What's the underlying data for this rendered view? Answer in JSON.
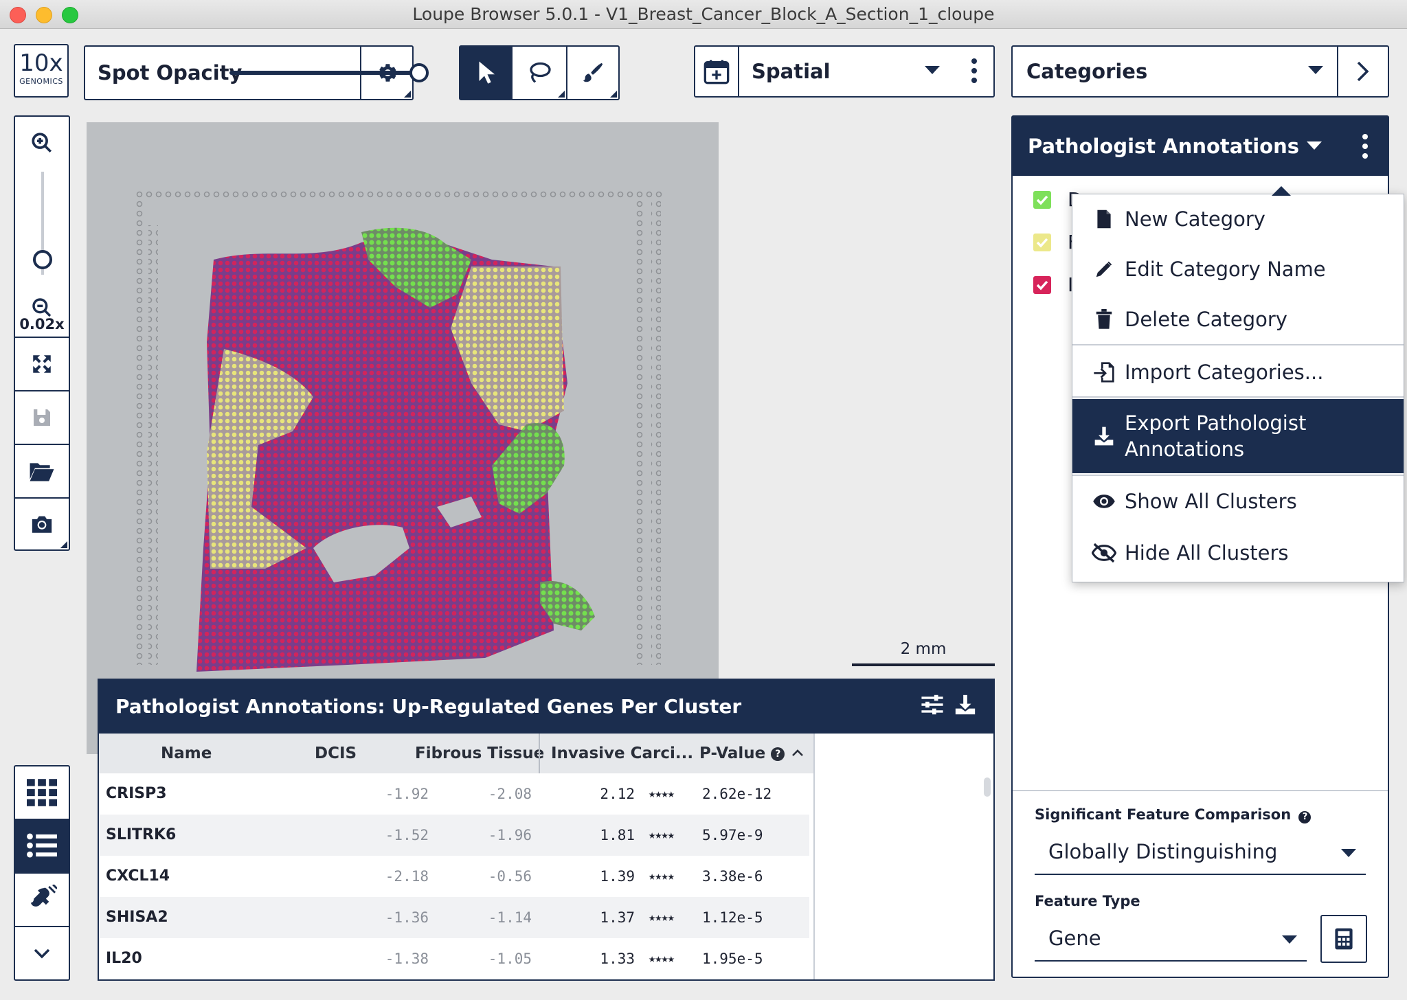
{
  "window": {
    "title": "Loupe Browser 5.0.1 - V1_Breast_Cancer_Block_A_Section_1_cloupe"
  },
  "logo": {
    "line1": "10x",
    "line2": "GENOMICS"
  },
  "toolbar": {
    "spot_opacity_label": "Spot Opacity",
    "spot_opacity_value": 0.95,
    "view_mode": "Spatial",
    "category_select": "Categories"
  },
  "zoom": {
    "level": "0.02x",
    "slider_value": 0.15
  },
  "scale_bar": {
    "label": "2 mm"
  },
  "annotations_panel": {
    "title": "Pathologist Annotations",
    "categories": [
      {
        "label": "D",
        "color": "#7ee05a"
      },
      {
        "label": "F",
        "color": "#ece88a"
      },
      {
        "label": "I",
        "color": "#d7245a"
      }
    ]
  },
  "context_menu": {
    "items": [
      {
        "label": "New Category",
        "icon": "file-icon"
      },
      {
        "label": "Edit Category Name",
        "icon": "pencil-icon"
      },
      {
        "label": "Delete Category",
        "icon": "trash-icon"
      },
      {
        "label": "Import Categories...",
        "icon": "import-icon"
      },
      {
        "label": "Export Pathologist Annotations",
        "icon": "download-icon",
        "highlighted": true
      },
      {
        "label": "Show All Clusters",
        "icon": "eye-icon"
      },
      {
        "label": "Hide All Clusters",
        "icon": "eye-slash-icon"
      }
    ]
  },
  "gene_table": {
    "title": "Pathologist Annotations: Up-Regulated Genes Per Cluster",
    "columns": [
      "Name",
      "DCIS",
      "Fibrous Tissue",
      "Invasive Carci...",
      "P-Value"
    ],
    "rows": [
      {
        "name": "CRISP3",
        "dcis": "-1.92",
        "fibrous": "-2.08",
        "invasive": "2.12",
        "stars": "★★★★",
        "pvalue": "2.62e-12"
      },
      {
        "name": "SLITRK6",
        "dcis": "-1.52",
        "fibrous": "-1.96",
        "invasive": "1.81",
        "stars": "★★★★",
        "pvalue": "5.97e-9"
      },
      {
        "name": "CXCL14",
        "dcis": "-2.18",
        "fibrous": "-0.56",
        "invasive": "1.39",
        "stars": "★★★★",
        "pvalue": "3.38e-6"
      },
      {
        "name": "SHISA2",
        "dcis": "-1.36",
        "fibrous": "-1.14",
        "invasive": "1.37",
        "stars": "★★★★",
        "pvalue": "1.12e-5"
      },
      {
        "name": "IL20",
        "dcis": "-1.38",
        "fibrous": "-1.05",
        "invasive": "1.33",
        "stars": "★★★★",
        "pvalue": "1.95e-5"
      }
    ]
  },
  "feature_comparison": {
    "label": "Significant Feature Comparison",
    "value": "Globally Distinguishing",
    "type_label": "Feature Type",
    "type_value": "Gene"
  },
  "colors": {
    "navy": "#1b2d4e",
    "dcis": "#7ee05a",
    "fibrous": "#ece88a",
    "invasive": "#d7245a"
  }
}
